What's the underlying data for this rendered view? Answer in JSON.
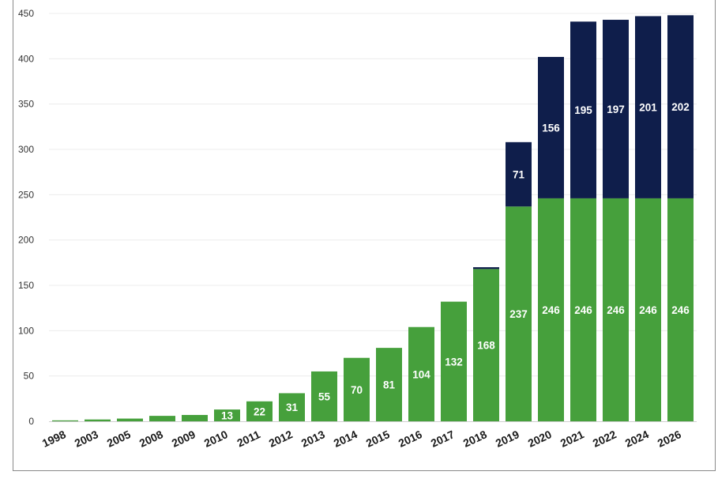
{
  "chart_data": {
    "type": "bar",
    "stacked": true,
    "title": "",
    "xlabel": "",
    "ylabel": "",
    "ylim": [
      0,
      450
    ],
    "y_ticks": [
      0,
      50,
      100,
      150,
      200,
      250,
      300,
      350,
      400,
      450
    ],
    "grid": true,
    "categories": [
      "1998",
      "2003",
      "2005",
      "2008",
      "2009",
      "2010",
      "2011",
      "2012",
      "2013",
      "2014",
      "2015",
      "2016",
      "2017",
      "2018",
      "2019",
      "2020",
      "2021",
      "2022",
      "2024",
      "2026"
    ],
    "series": [
      {
        "name": "green",
        "color": "#46a03c",
        "values": [
          1,
          2,
          3,
          6,
          7,
          13,
          22,
          31,
          55,
          70,
          81,
          104,
          132,
          168,
          237,
          246,
          246,
          246,
          246,
          246
        ],
        "labels": [
          "",
          "",
          "",
          "",
          "",
          "13",
          "22",
          "31",
          "55",
          "70",
          "81",
          "104",
          "132",
          "168",
          "237",
          "246",
          "246",
          "246",
          "246",
          "246"
        ]
      },
      {
        "name": "navy",
        "color": "#0f1e4b",
        "values": [
          0,
          0,
          0,
          0,
          0,
          0,
          0,
          0,
          0,
          0,
          0,
          0,
          0,
          2,
          71,
          156,
          195,
          197,
          201,
          202
        ],
        "labels": [
          "",
          "",
          "",
          "",
          "",
          "",
          "",
          "",
          "",
          "",
          "",
          "",
          "",
          "",
          "71",
          "156",
          "195",
          "197",
          "201",
          "202"
        ]
      }
    ]
  }
}
